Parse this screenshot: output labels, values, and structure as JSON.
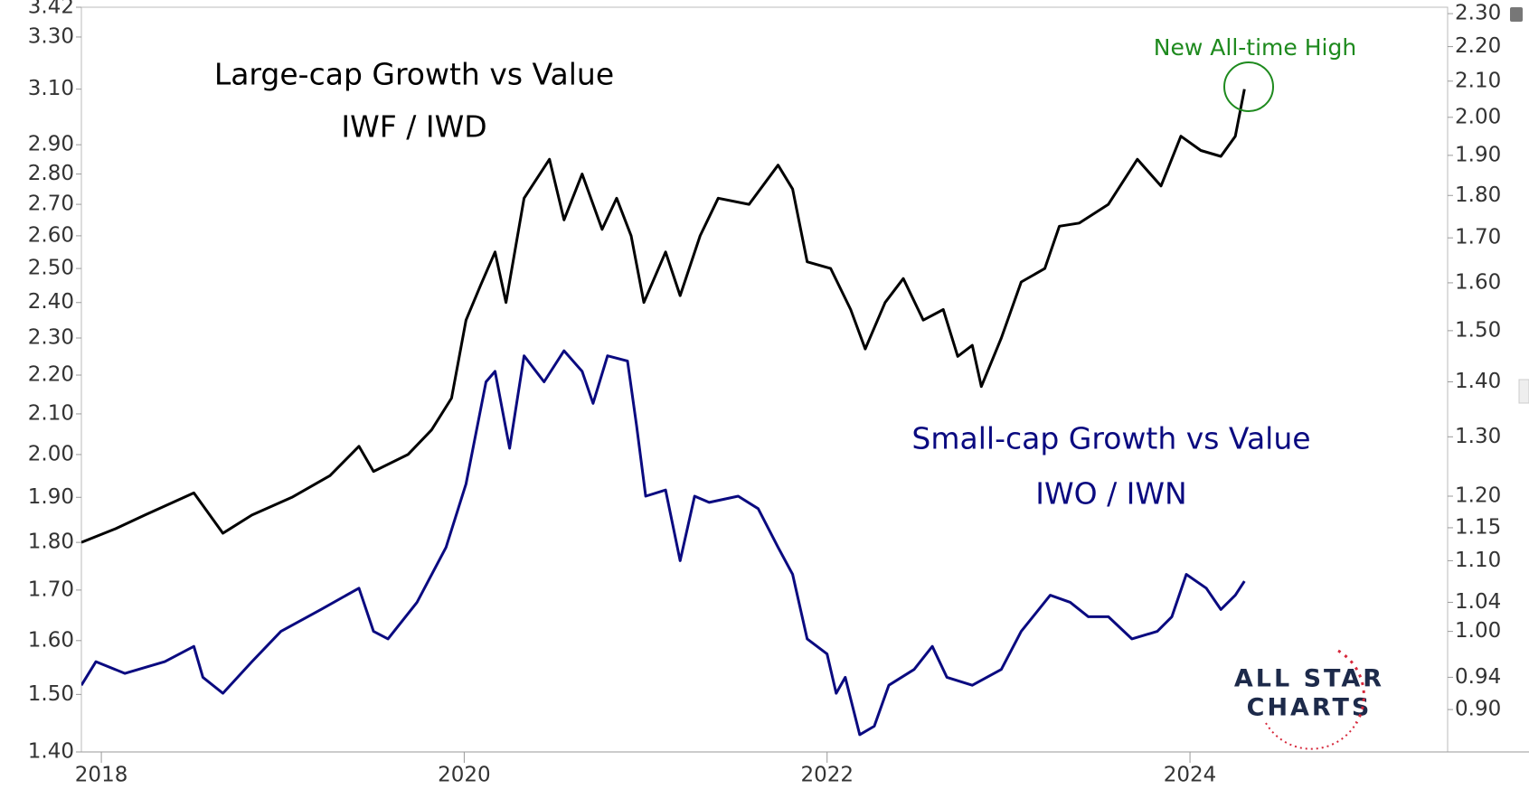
{
  "chart_data": {
    "type": "line",
    "xlim": [
      2017.89,
      2025.42
    ],
    "xticks": [
      2018,
      2020,
      2022,
      2024
    ],
    "ylim": [
      1.4,
      3.42
    ],
    "yticks": [
      {
        "value": 1.4,
        "label": "1.40"
      },
      {
        "value": 1.5,
        "label": "1.50"
      },
      {
        "value": 1.6,
        "label": "1.60"
      },
      {
        "value": 1.7,
        "label": "1.70"
      },
      {
        "value": 1.8,
        "label": "1.80"
      },
      {
        "value": 1.9,
        "label": "1.90"
      },
      {
        "value": 2.0,
        "label": "2.00"
      },
      {
        "value": 2.1,
        "label": "2.10"
      },
      {
        "value": 2.2,
        "label": "2.20"
      },
      {
        "value": 2.3,
        "label": "2.30"
      },
      {
        "value": 2.4,
        "label": "2.40"
      },
      {
        "value": 2.5,
        "label": "2.50"
      },
      {
        "value": 2.6,
        "label": "2.60"
      },
      {
        "value": 2.7,
        "label": "2.70"
      },
      {
        "value": 2.8,
        "label": "2.80"
      },
      {
        "value": 2.9,
        "label": "2.90"
      },
      {
        "value": 3.1,
        "label": "3.10"
      },
      {
        "value": 3.3,
        "label": "3.30"
      },
      3.42
    ],
    "y2lim": [
      0.85,
      2.32
    ],
    "y2ticks": [
      {
        "value": 0.9,
        "label": "0.90"
      },
      0.94,
      {
        "value": 1.0,
        "label": "1.00"
      },
      1.04,
      {
        "value": 1.1,
        "label": "1.10"
      },
      1.15,
      {
        "value": 1.2,
        "label": "1.20"
      },
      {
        "value": 1.3,
        "label": "1.30"
      },
      {
        "value": 1.4,
        "label": "1.40"
      },
      {
        "value": 1.5,
        "label": "1.50"
      },
      {
        "value": 1.6,
        "label": "1.60"
      },
      {
        "value": 1.7,
        "label": "1.70"
      },
      {
        "value": 1.8,
        "label": "1.80"
      },
      {
        "value": 1.9,
        "label": "1.90"
      },
      {
        "value": 2.0,
        "label": "2.00"
      },
      {
        "value": 2.1,
        "label": "2.10"
      },
      {
        "value": 2.2,
        "label": "2.20"
      },
      {
        "value": 2.3,
        "label": "2.30"
      }
    ],
    "log_scale": true,
    "series": [
      {
        "name": "Large-cap Growth vs Value",
        "ticker": "IWF / IWD",
        "color": "#000000",
        "axis": "y",
        "x": [
          2017.89,
          2018.08,
          2018.24,
          2018.51,
          2018.67,
          2018.83,
          2019.05,
          2019.26,
          2019.42,
          2019.5,
          2019.69,
          2019.82,
          2019.93,
          2020.01,
          2020.09,
          2020.17,
          2020.23,
          2020.33,
          2020.47,
          2020.55,
          2020.65,
          2020.76,
          2020.84,
          2020.92,
          2020.99,
          2021.11,
          2021.19,
          2021.3,
          2021.4,
          2021.57,
          2021.73,
          2021.81,
          2021.89,
          2022.02,
          2022.13,
          2022.21,
          2022.32,
          2022.42,
          2022.53,
          2022.64,
          2022.72,
          2022.8,
          2022.85,
          2022.96,
          2023.07,
          2023.2,
          2023.28,
          2023.39,
          2023.55,
          2023.71,
          2023.84,
          2023.95,
          2024.06,
          2024.17,
          2024.25,
          2024.3
        ],
        "values": [
          1.8,
          1.83,
          1.86,
          1.91,
          1.82,
          1.86,
          1.9,
          1.95,
          2.02,
          1.96,
          2.0,
          2.06,
          2.14,
          2.35,
          2.45,
          2.55,
          2.4,
          2.72,
          2.85,
          2.65,
          2.8,
          2.62,
          2.72,
          2.6,
          2.4,
          2.55,
          2.42,
          2.6,
          2.72,
          2.7,
          2.83,
          2.75,
          2.52,
          2.5,
          2.38,
          2.27,
          2.4,
          2.47,
          2.35,
          2.38,
          2.25,
          2.28,
          2.17,
          2.3,
          2.46,
          2.5,
          2.63,
          2.64,
          2.7,
          2.85,
          2.76,
          2.93,
          2.88,
          2.86,
          2.93,
          3.1
        ]
      },
      {
        "name": "Small-cap Growth vs Value",
        "ticker": "IWO / IWN",
        "color": "#0a0a80",
        "axis": "y2",
        "x": [
          2017.89,
          2017.97,
          2018.13,
          2018.35,
          2018.51,
          2018.56,
          2018.67,
          2018.83,
          2018.99,
          2019.21,
          2019.42,
          2019.5,
          2019.58,
          2019.74,
          2019.9,
          2020.01,
          2020.12,
          2020.17,
          2020.25,
          2020.33,
          2020.44,
          2020.55,
          2020.65,
          2020.71,
          2020.79,
          2020.9,
          2020.95,
          2021.0,
          2021.11,
          2021.19,
          2021.27,
          2021.35,
          2021.51,
          2021.62,
          2021.73,
          2021.81,
          2021.89,
          2022.0,
          2022.05,
          2022.1,
          2022.18,
          2022.26,
          2022.34,
          2022.48,
          2022.58,
          2022.66,
          2022.8,
          2022.96,
          2023.07,
          2023.23,
          2023.34,
          2023.44,
          2023.55,
          2023.68,
          2023.82,
          2023.9,
          2023.98,
          2024.09,
          2024.17,
          2024.25,
          2024.3
        ],
        "values": [
          0.93,
          0.96,
          0.945,
          0.96,
          0.98,
          0.94,
          0.92,
          0.96,
          1.0,
          1.03,
          1.06,
          1.0,
          0.99,
          1.04,
          1.12,
          1.22,
          1.4,
          1.42,
          1.28,
          1.45,
          1.4,
          1.46,
          1.42,
          1.36,
          1.45,
          1.44,
          1.32,
          1.2,
          1.21,
          1.1,
          1.2,
          1.19,
          1.2,
          1.18,
          1.12,
          1.08,
          0.99,
          0.97,
          0.92,
          0.94,
          0.87,
          0.88,
          0.93,
          0.95,
          0.98,
          0.94,
          0.93,
          0.95,
          1.0,
          1.05,
          1.04,
          1.02,
          1.02,
          0.99,
          1.0,
          1.02,
          1.08,
          1.06,
          1.03,
          1.05,
          1.07
        ]
      }
    ],
    "annotations": [
      {
        "text": "New All-time High",
        "color": "#1e8a1e"
      }
    ],
    "logo": [
      "ALL STAR",
      "CHARTS"
    ]
  }
}
